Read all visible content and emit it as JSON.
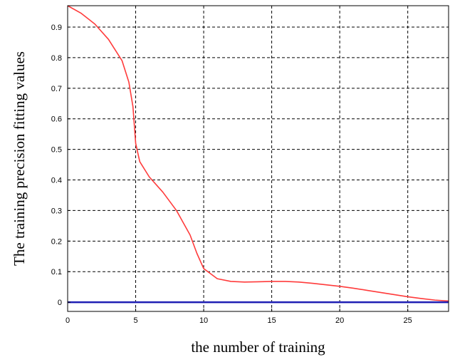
{
  "chart_data": {
    "type": "line",
    "title": "",
    "xlabel": "the number of training",
    "ylabel": "The training precision fitting values",
    "xlim": [
      0,
      28
    ],
    "ylim": [
      -0.03,
      0.97
    ],
    "xticks": [
      0,
      5,
      10,
      15,
      20,
      25
    ],
    "yticks": [
      0,
      0.1,
      0.2,
      0.3,
      0.4,
      0.5,
      0.6,
      0.7,
      0.8,
      0.9
    ],
    "grid": true,
    "series": [
      {
        "color": "#ff3b3b",
        "x": [
          0,
          1,
          2,
          3,
          4,
          4.5,
          4.8,
          5,
          5.3,
          6,
          7,
          8,
          9,
          9.5,
          10,
          11,
          12,
          13,
          14,
          15,
          16,
          17,
          18,
          19,
          20,
          21,
          22,
          23,
          24,
          25,
          26,
          27,
          28
        ],
        "y": [
          0.97,
          0.945,
          0.91,
          0.86,
          0.79,
          0.72,
          0.64,
          0.52,
          0.46,
          0.41,
          0.36,
          0.3,
          0.22,
          0.16,
          0.11,
          0.077,
          0.068,
          0.066,
          0.067,
          0.068,
          0.068,
          0.066,
          0.062,
          0.057,
          0.052,
          0.046,
          0.039,
          0.032,
          0.025,
          0.018,
          0.012,
          0.007,
          0.004
        ]
      },
      {
        "color": "#1f1fb4",
        "x": [
          0,
          28
        ],
        "y": [
          0,
          0
        ]
      }
    ]
  }
}
